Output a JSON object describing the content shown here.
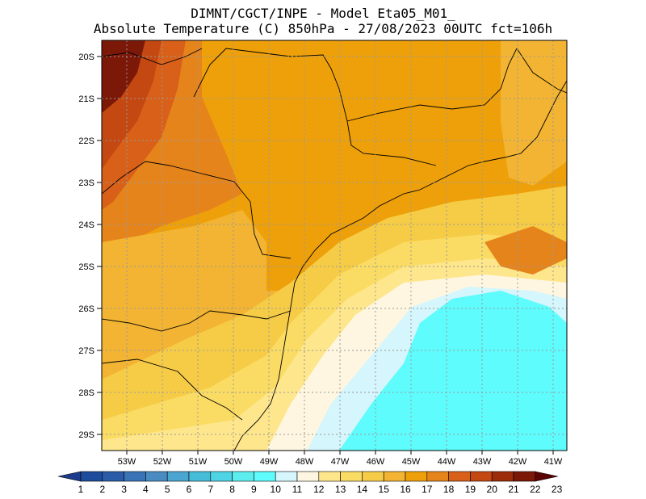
{
  "title_line1": "DIMNT/CGCT/INPE -  Model Eta05_M01_",
  "title_line2": "Absolute Temperature (C) 850hPa -  27/08/2023 00UTC fct=106h",
  "map": {
    "lon_range": [
      -53.8,
      -40.7
    ],
    "lat_range": [
      -29.4,
      -19.8
    ],
    "lat_ticks": [
      "20S",
      "21S",
      "22S",
      "23S",
      "24S",
      "25S",
      "26S",
      "27S",
      "28S",
      "29S"
    ],
    "lon_ticks": [
      "53W",
      "52W",
      "51W",
      "50W",
      "49W",
      "48W",
      "47W",
      "46W",
      "45W",
      "44W",
      "43W",
      "42W",
      "41W"
    ],
    "grid": "dotted"
  },
  "colorbar": {
    "labels": [
      "1",
      "2",
      "3",
      "4",
      "5",
      "6",
      "7",
      "8",
      "9",
      "10",
      "11",
      "12",
      "13",
      "14",
      "15",
      "16",
      "17",
      "18",
      "19",
      "20",
      "21",
      "22",
      "23"
    ],
    "colors": [
      "#1e3c8c",
      "#1e4c9c",
      "#2a5ca8",
      "#3a74b6",
      "#4a8cc2",
      "#4aa6d0",
      "#46bcd8",
      "#4ed4e4",
      "#5ceeee",
      "#5efcfc",
      "#d4f6fc",
      "#fef6e0",
      "#fee68c",
      "#fadc64",
      "#f6cc46",
      "#f2b432",
      "#eea00a",
      "#e6841c",
      "#d86018",
      "#c44812",
      "#9c2c0a",
      "#7c1808",
      "#5c0404"
    ]
  },
  "chart_data": {
    "type": "heatmap",
    "variable": "Absolute Temperature (C) 850hPa",
    "colorbar_range": [
      1,
      23
    ],
    "regions": [
      {
        "location": "far north-west (20S-22S, 53W-52W)",
        "approx_value": 22
      },
      {
        "location": "west (22S-24S, 53W-51W)",
        "approx_value": 19
      },
      {
        "location": "central interior (21S-24S, 50W-45W)",
        "approx_value": 16
      },
      {
        "location": "south-west (25S-27S, 53W-50W)",
        "approx_value": 15
      },
      {
        "location": "southern coast (27S-29S, 49W-47W)",
        "approx_value": 13
      },
      {
        "location": "offshore south-east (26S-29S, 45W-41W)",
        "approx_value": 10
      },
      {
        "location": "far east (20S-23S, 42W-41W)",
        "approx_value": 15
      }
    ]
  }
}
